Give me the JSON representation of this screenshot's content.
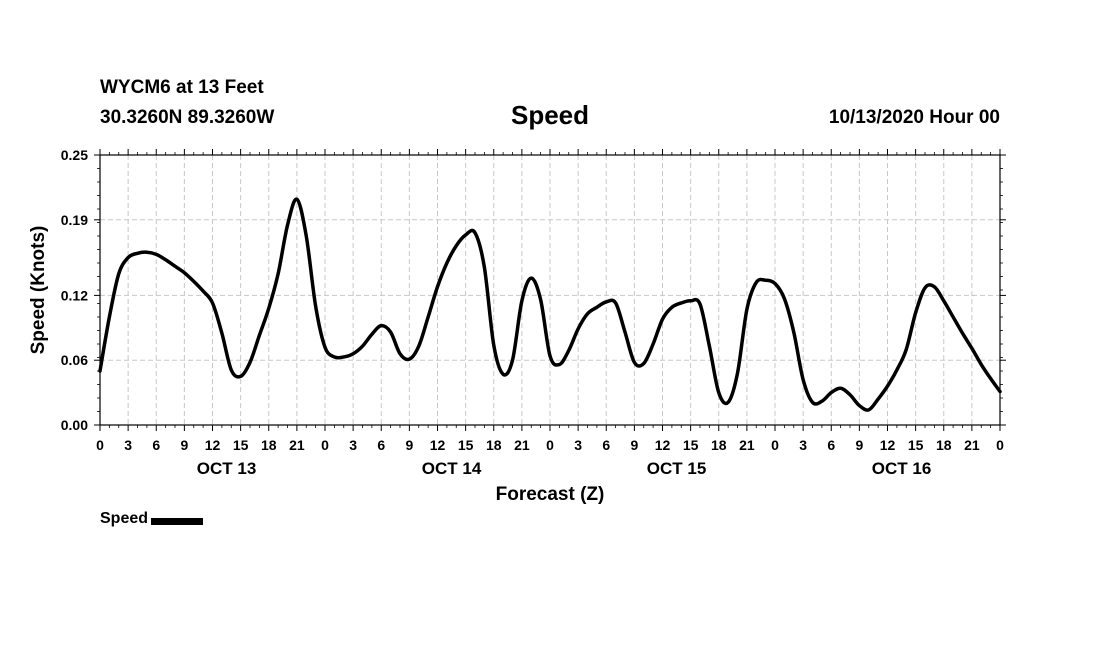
{
  "header": {
    "station": "WYCM6 at 13 Feet",
    "coords": "30.3260N 89.3260W",
    "title": "Speed",
    "timestamp": "10/13/2020 Hour 00"
  },
  "legend": {
    "label": "Speed",
    "color": "#000000"
  },
  "chart_data": {
    "type": "line",
    "title": "Speed",
    "xlabel": "Forecast (Z)",
    "ylabel": "Speed (Knots)",
    "ylim": [
      0,
      0.25
    ],
    "yticks": [
      "0.00",
      "0.06",
      "0.12",
      "0.19",
      "0.25"
    ],
    "xlim": [
      0,
      96
    ],
    "xtick_labels": [
      "0",
      "3",
      "6",
      "9",
      "12",
      "15",
      "18",
      "21",
      "0",
      "3",
      "6",
      "9",
      "12",
      "15",
      "18",
      "21",
      "0",
      "3",
      "6",
      "9",
      "12",
      "15",
      "18",
      "21",
      "0",
      "3",
      "6",
      "9",
      "12",
      "15",
      "18",
      "21",
      "0"
    ],
    "day_labels": [
      "OCT 13",
      "OCT 14",
      "OCT 15",
      "OCT 16"
    ],
    "grid": true,
    "series": [
      {
        "name": "Speed",
        "color": "#000000",
        "x": [
          0,
          1,
          2,
          3,
          4,
          5,
          6,
          7,
          8,
          9,
          10,
          11,
          12,
          13,
          14,
          15,
          16,
          17,
          18,
          19,
          20,
          21,
          22,
          23,
          24,
          25,
          26,
          27,
          28,
          29,
          30,
          31,
          32,
          33,
          34,
          35,
          36,
          37,
          38,
          39,
          40,
          41,
          42,
          43,
          44,
          45,
          46,
          47,
          48,
          49,
          50,
          51,
          52,
          53,
          54,
          55,
          56,
          57,
          58,
          59,
          60,
          61,
          62,
          63,
          64,
          65,
          66,
          67,
          68,
          69,
          70,
          71,
          72,
          73,
          74,
          75,
          76,
          77,
          78,
          79,
          80,
          81,
          82,
          83,
          84,
          85,
          86,
          87,
          88,
          89,
          90,
          91,
          92,
          93,
          94,
          95,
          96
        ],
        "values": [
          0.05,
          0.1,
          0.14,
          0.155,
          0.159,
          0.16,
          0.158,
          0.153,
          0.147,
          0.141,
          0.133,
          0.124,
          0.113,
          0.085,
          0.051,
          0.045,
          0.058,
          0.083,
          0.108,
          0.14,
          0.185,
          0.209,
          0.175,
          0.11,
          0.072,
          0.063,
          0.063,
          0.066,
          0.073,
          0.084,
          0.092,
          0.086,
          0.066,
          0.061,
          0.073,
          0.1,
          0.128,
          0.15,
          0.166,
          0.176,
          0.178,
          0.146,
          0.074,
          0.047,
          0.06,
          0.115,
          0.136,
          0.116,
          0.064,
          0.056,
          0.069,
          0.089,
          0.103,
          0.109,
          0.114,
          0.113,
          0.086,
          0.058,
          0.057,
          0.075,
          0.098,
          0.109,
          0.113,
          0.115,
          0.112,
          0.073,
          0.03,
          0.021,
          0.048,
          0.107,
          0.132,
          0.134,
          0.131,
          0.117,
          0.086,
          0.042,
          0.021,
          0.022,
          0.03,
          0.034,
          0.028,
          0.018,
          0.014,
          0.024,
          0.036,
          0.051,
          0.07,
          0.104,
          0.127,
          0.128,
          0.115,
          0.1,
          0.085,
          0.071,
          0.056,
          0.043,
          0.031
        ]
      }
    ]
  }
}
